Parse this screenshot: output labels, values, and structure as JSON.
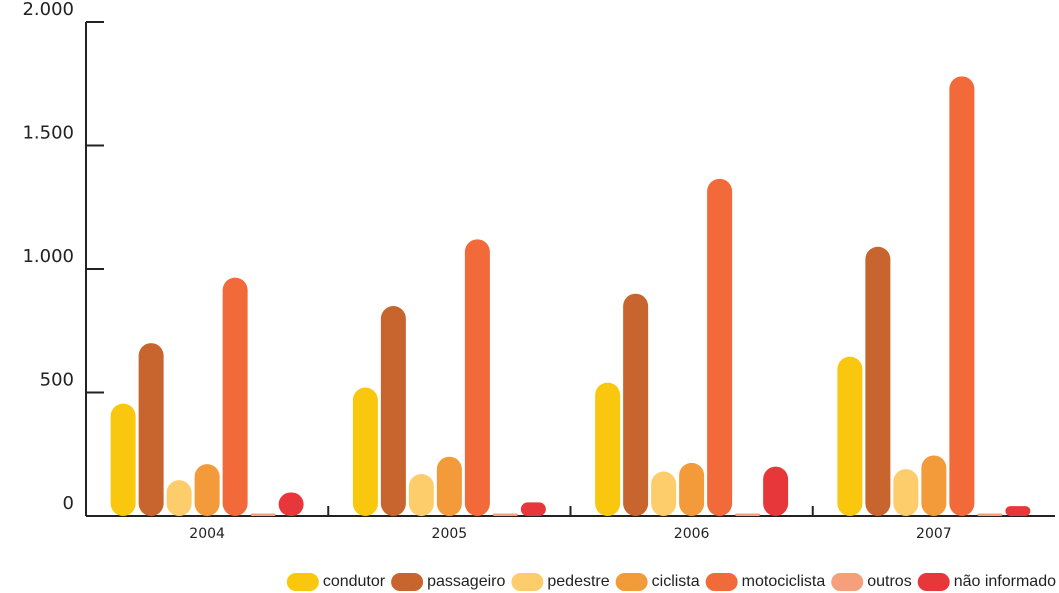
{
  "chart_data": {
    "type": "bar",
    "categories": [
      "2004",
      "2005",
      "2006",
      "2007"
    ],
    "series": [
      {
        "name": "condutor",
        "color": "#f9c80e",
        "values": [
          455,
          520,
          540,
          645
        ]
      },
      {
        "name": "passageiro",
        "color": "#c8642e",
        "values": [
          700,
          850,
          900,
          1090
        ]
      },
      {
        "name": "pedestre",
        "color": "#fdcd6b",
        "values": [
          145,
          170,
          180,
          190
        ]
      },
      {
        "name": "ciclista",
        "color": "#f39a3a",
        "values": [
          210,
          240,
          215,
          245
        ]
      },
      {
        "name": "motociclista",
        "color": "#f26a3a",
        "values": [
          965,
          1120,
          1365,
          1780
        ]
      },
      {
        "name": "outros",
        "color": "#f5a07a",
        "values": [
          10,
          10,
          10,
          10
        ]
      },
      {
        "name": "não informado",
        "color": "#e8373a",
        "values": [
          95,
          55,
          200,
          40
        ]
      }
    ],
    "ylim": [
      0,
      2000
    ],
    "yticks": [
      0,
      500,
      {
        "value": 1000,
        "label": "1.000"
      },
      {
        "value": 1500,
        "label": "1.500"
      },
      {
        "value": 2000,
        "label": "2.000"
      }
    ],
    "grid": false,
    "legend": "bottom-right"
  }
}
